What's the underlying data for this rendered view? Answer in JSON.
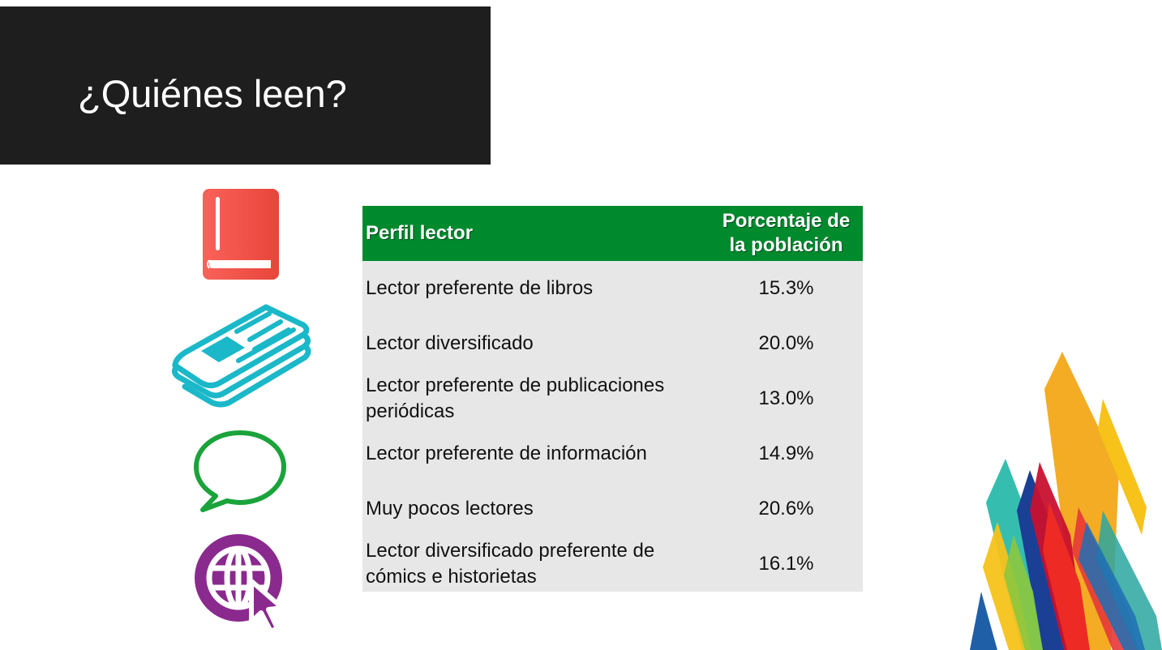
{
  "slide": {
    "title": "¿Quiénes leen?"
  },
  "icons": [
    "book-icon",
    "newspaper-icon",
    "chat-bubble-icon",
    "globe-cursor-icon"
  ],
  "colors": {
    "title_bg": "#1e1e1e",
    "header_green": "#008a2e",
    "row_bg": "#e7e7e7",
    "book_red": "#f05a4f",
    "newspaper_cyan": "#1ab8c8",
    "chat_green": "#1aa33a",
    "globe_purple": "#8a2a8e"
  },
  "table": {
    "headers": {
      "profile": "Perfil lector",
      "percentage": "Porcentaje  de la población"
    },
    "rows": [
      {
        "profile": "Lector preferente de libros",
        "percentage": "15.3%"
      },
      {
        "profile": "Lector diversificado",
        "percentage": "20.0%"
      },
      {
        "profile": "Lector preferente de publicaciones periódicas",
        "percentage": "13.0%"
      },
      {
        "profile": "Lector preferente de información",
        "percentage": "14.9%"
      },
      {
        "profile": "Muy pocos lectores",
        "percentage": "20.6%"
      },
      {
        "profile": "Lector diversificado preferente de cómics e historietas",
        "percentage": "16.1%"
      }
    ]
  }
}
